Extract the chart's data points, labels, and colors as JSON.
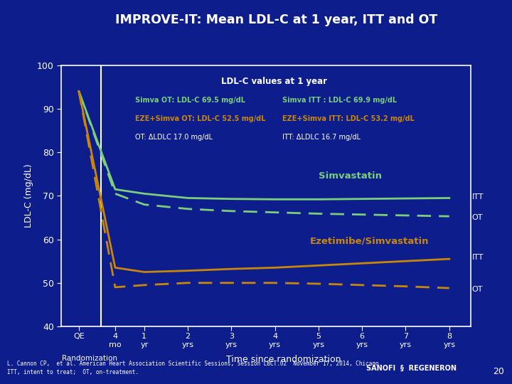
{
  "title": "IMPROVE-IT: Mean LDL-C at 1 year, ITT and OT",
  "ylabel": "LDL-C (mg/dL)",
  "bg_color": "#0d1e8c",
  "plot_bg_color": "#0d1e8c",
  "footer_bg_color": "#b8972a",
  "ylim": [
    40,
    100
  ],
  "yticks": [
    40,
    50,
    60,
    70,
    80,
    90,
    100
  ],
  "annotation_title": "LDL-C values at 1 year",
  "simva_color": "#7ccd7c",
  "eze_color": "#c8860a",
  "footer_text": "L. Cannon CP,  et al. American Heart Association Scientific Sessions, Session LBCT.02  November 17, 2014, Chicago.\nITT, intent to treat;  OT, on-treatment.",
  "x_positions": [
    -0.5,
    0.333,
    1.0,
    2.0,
    3.0,
    4.0,
    5.0,
    6.0,
    7.0,
    8.0
  ],
  "x_tick_pos": [
    -0.5,
    0.333,
    1.0,
    2.0,
    3.0,
    4.0,
    5.0,
    6.0,
    7.0,
    8.0
  ],
  "x_tick_line1": [
    "QE",
    "4",
    "1",
    "2",
    "3",
    "4",
    "5",
    "6",
    "7",
    "8"
  ],
  "x_tick_line2": [
    "",
    "mo",
    "yr",
    "yrs",
    "yrs",
    "yrs",
    "yrs",
    "yrs",
    "yrs",
    "yrs"
  ],
  "simva_itt_y": [
    94,
    71.5,
    70.5,
    69.5,
    69.3,
    69.2,
    69.2,
    69.3,
    69.4,
    69.5
  ],
  "simva_ot_y": [
    94,
    70.5,
    68.0,
    67.0,
    66.5,
    66.2,
    65.9,
    65.7,
    65.5,
    65.3
  ],
  "eze_itt_y": [
    94,
    53.5,
    52.5,
    52.8,
    53.2,
    53.5,
    54.0,
    54.5,
    55.0,
    55.5
  ],
  "eze_ot_y": [
    94,
    49.0,
    49.5,
    50.0,
    50.0,
    50.0,
    49.8,
    49.5,
    49.2,
    48.8
  ],
  "page_num": "20"
}
